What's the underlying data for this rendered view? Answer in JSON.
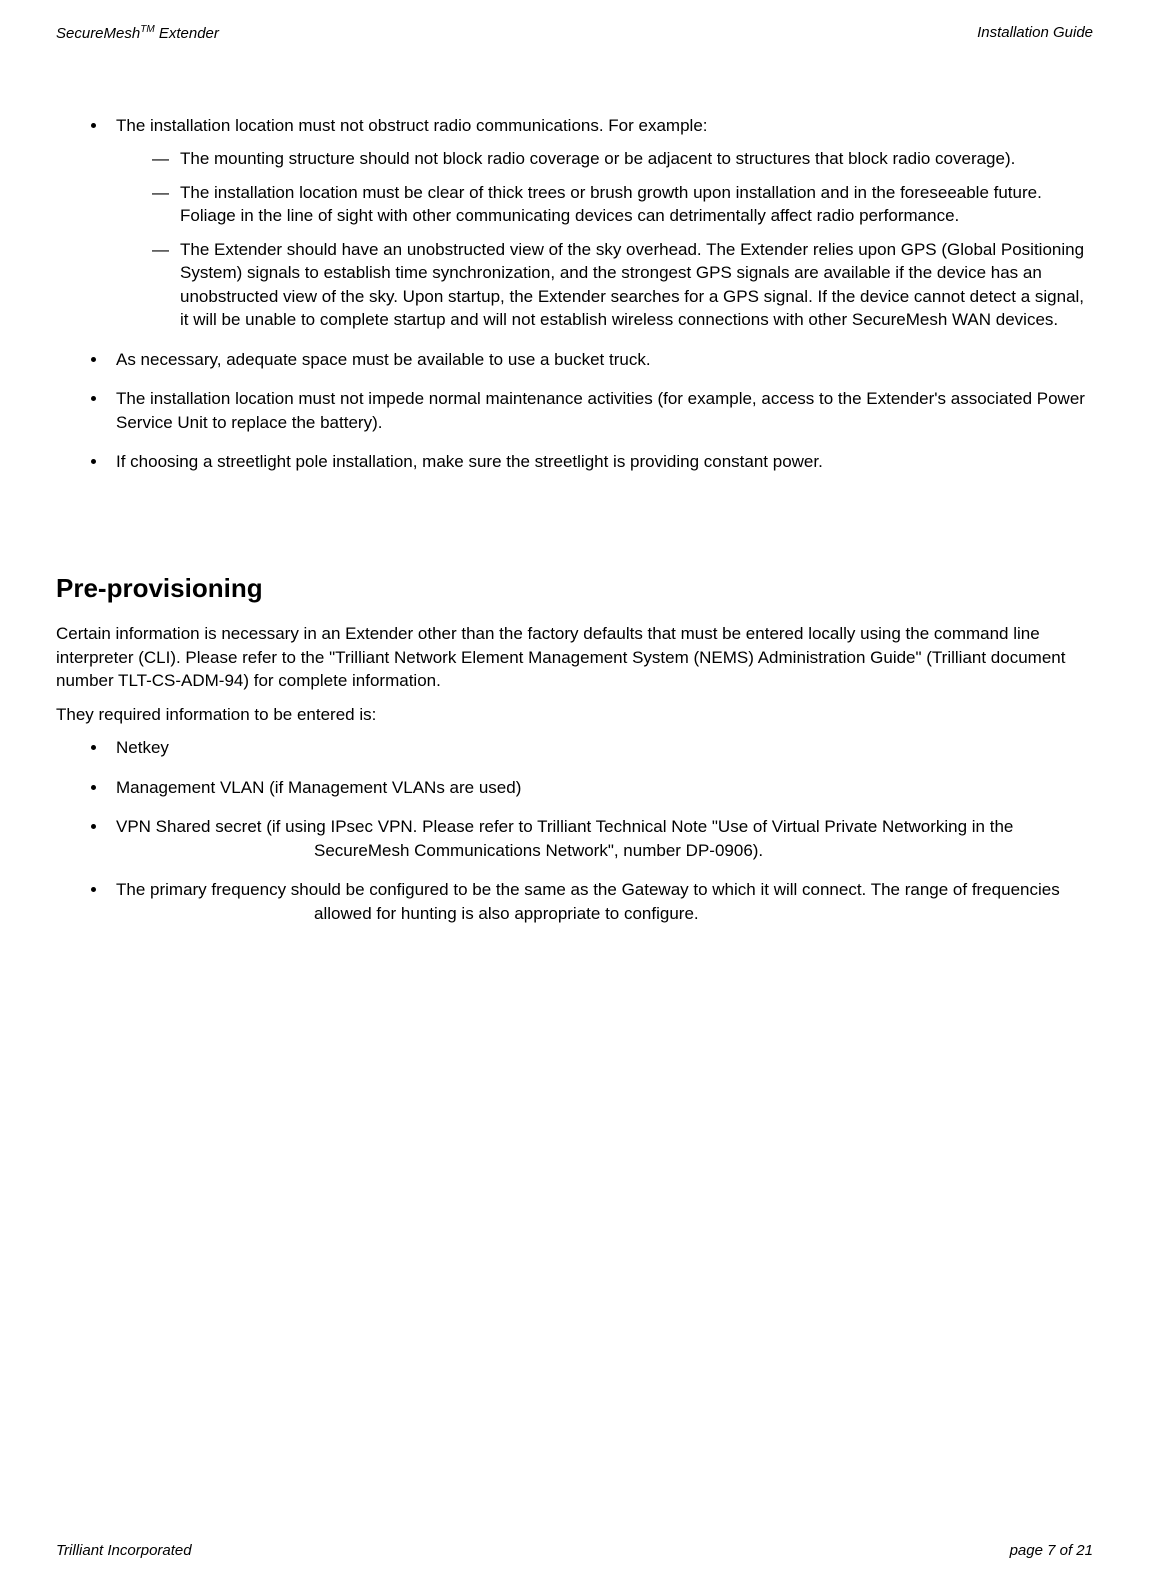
{
  "header": {
    "left_pre": "SecureMesh",
    "left_sup": "TM",
    "left_post": " Extender",
    "right": "Installation Guide"
  },
  "section1": {
    "b1": "The installation location must not obstruct radio communications.  For example:",
    "b1s1": "The mounting structure should not block radio coverage or be adjacent to structures that block radio coverage).",
    "b1s2": "The installation location must be clear of thick trees or brush growth upon installation and in the foreseeable future.  Foliage in the line of sight with other communicating devices can detrimentally affect radio performance.",
    "b1s3": "The Extender should have an unobstructed view of the sky overhead.  The Extender relies upon GPS (Global Positioning System) signals to establish time synchronization, and the strongest GPS signals are available if the device has an unobstructed view of the sky.  Upon startup, the Extender searches for a GPS signal.  If the device cannot detect a signal, it will be unable to complete startup and will not establish wireless connections with other SecureMesh WAN devices.",
    "b2": "As necessary, adequate space must be available to use a bucket truck.",
    "b3": "The installation location must not impede normal maintenance activities (for example, access to the Extender's associated Power Service Unit to replace the battery).",
    "b4": "If choosing a streetlight pole installation, make sure the streetlight is providing constant power."
  },
  "section2": {
    "heading": "Pre-provisioning",
    "p1": "Certain information is necessary in an Extender other than the factory defaults that must be entered locally using the command line interpreter (CLI). Please refer to the \"Trilliant Network Element Management System (NEMS) Administration Guide\" (Trilliant document number TLT-CS-ADM-94) for complete information.",
    "p2": "They required information to be entered is:",
    "b1": "Netkey",
    "b2": "Management VLAN (if Management VLANs are used)",
    "b3": "VPN Shared secret (if using IPsec VPN. Please refer to Trilliant Technical Note \"Use of Virtual Private Networking in the SecureMesh Communications Network\", number DP-0906).",
    "b4": "The primary frequency should be configured to be the same as the Gateway to which it will connect. The range of frequencies allowed for hunting is also appropriate to configure."
  },
  "footer": {
    "left": "Trilliant Incorporated",
    "right": "page 7 of 21"
  }
}
